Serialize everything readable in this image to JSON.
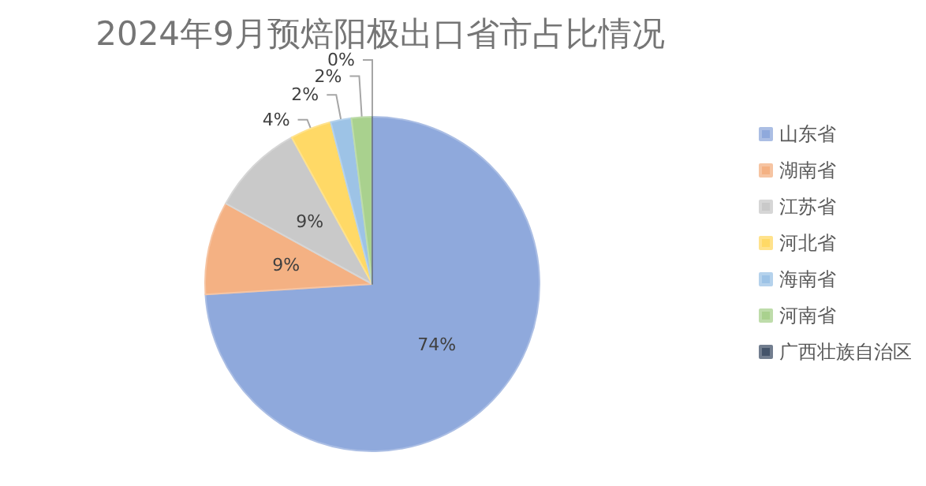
{
  "chart_data": {
    "type": "pie",
    "title": "2024年9月预焙阳极出口省市占比情况",
    "categories": [
      "山东省",
      "湖南省",
      "江苏省",
      "河北省",
      "海南省",
      "河南省",
      "广西壮族自治区"
    ],
    "values": [
      74,
      9,
      9,
      4,
      2,
      2,
      0
    ],
    "colors": [
      "#8fa9dc",
      "#f4b183",
      "#c9c9c9",
      "#ffd966",
      "#9dc3e6",
      "#a9d18e",
      "#44546a"
    ],
    "value_labels": [
      "74%",
      "9%",
      "9%",
      "4%",
      "2%",
      "2%",
      "0%"
    ],
    "legend": "right"
  }
}
